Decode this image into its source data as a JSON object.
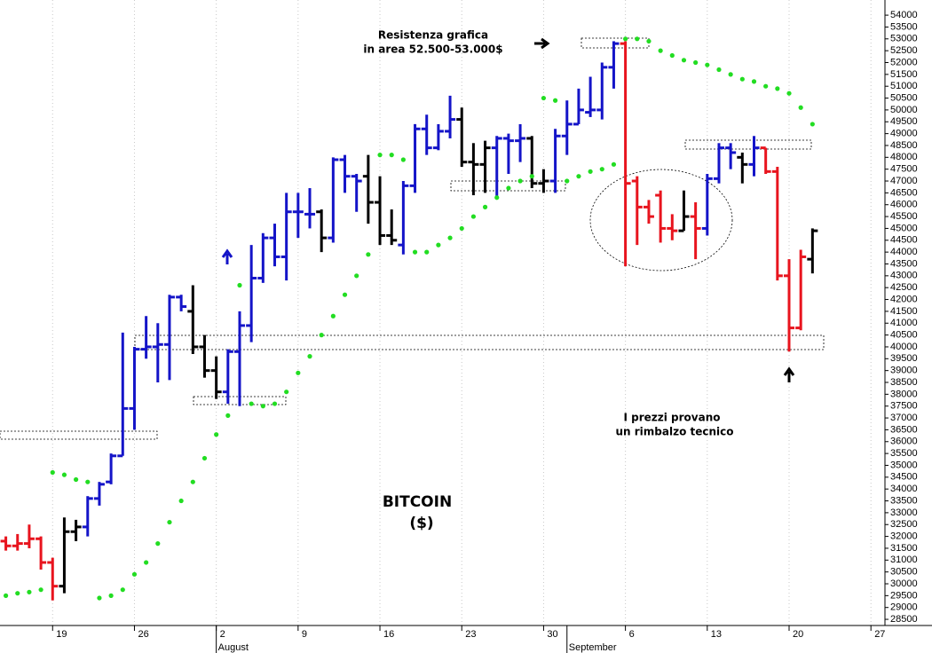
{
  "chart_data": {
    "type": "ohlc",
    "title": "BITCOIN",
    "subtitle": "($)",
    "annotations": [
      "Resistenza grafica",
      "in area 52.500-53.000$",
      "I prezzi provano",
      "un rimbalzo tecnico"
    ],
    "xlim": [
      -0.5,
      75.2
    ],
    "xticks": [
      {
        "value": 4,
        "label": "19"
      },
      {
        "value": 11,
        "label": "26"
      },
      {
        "value": 18,
        "label": "2"
      },
      {
        "value": 25,
        "label": "9"
      },
      {
        "value": 32,
        "label": "16"
      },
      {
        "value": 39,
        "label": "23"
      },
      {
        "value": 46,
        "label": "30"
      },
      {
        "value": 53,
        "label": "6"
      },
      {
        "value": 60,
        "label": "13"
      },
      {
        "value": 67,
        "label": "20"
      },
      {
        "value": 74,
        "label": "27"
      }
    ],
    "months": [
      {
        "value": 18,
        "label": "August"
      },
      {
        "value": 48,
        "label": "September"
      }
    ],
    "ylim": [
      28240,
      54640
    ],
    "yticks": [
      28500,
      29000,
      29500,
      30000,
      30500,
      31000,
      31500,
      32000,
      32500,
      33000,
      33500,
      34000,
      34500,
      35000,
      35500,
      36000,
      36500,
      37000,
      37500,
      38000,
      38500,
      39000,
      39500,
      40000,
      40500,
      41000,
      41500,
      42000,
      42500,
      43000,
      43500,
      44000,
      44500,
      45000,
      45500,
      46000,
      46500,
      47000,
      47500,
      48000,
      48500,
      49000,
      49500,
      50000,
      50500,
      51000,
      51500,
      52000,
      52500,
      53000,
      53500,
      54000
    ],
    "grid": true,
    "series": [
      {
        "color": "#e8141e",
        "x": [
          0,
          1,
          2,
          3,
          4,
          53,
          54,
          55,
          56,
          57,
          59,
          65,
          66,
          67,
          68
        ],
        "open": [
          31800,
          31600,
          31700,
          31900,
          30900,
          52800,
          47000,
          45900,
          46400,
          45000,
          45500,
          48400,
          47400,
          43000,
          40800
        ],
        "high": [
          32000,
          32100,
          32500,
          32000,
          31100,
          52900,
          47200,
          46200,
          46600,
          45600,
          46100,
          48400,
          47600,
          43700,
          44100
        ],
        "low": [
          31400,
          31400,
          31500,
          30600,
          29300,
          43400,
          44300,
          45200,
          44400,
          44500,
          43700,
          47300,
          42800,
          39800,
          40700
        ],
        "close": [
          31600,
          31700,
          31900,
          30900,
          29900,
          46900,
          45900,
          45500,
          45000,
          44900,
          45000,
          47400,
          43000,
          40800,
          43800
        ]
      },
      {
        "color": "#000000",
        "x": [
          5,
          6,
          16,
          17,
          18,
          27,
          31,
          32,
          33,
          39,
          40,
          41,
          45,
          46,
          58,
          63,
          69
        ],
        "open": [
          29900,
          32200,
          41500,
          40000,
          39000,
          45700,
          47200,
          46100,
          44700,
          49600,
          47800,
          47700,
          48800,
          46900,
          44900,
          48000,
          43700
        ],
        "high": [
          32800,
          32700,
          42600,
          40500,
          39600,
          45800,
          48100,
          47200,
          45800,
          50100,
          48600,
          48700,
          48900,
          47500,
          46600,
          48200,
          45000
        ],
        "low": [
          29600,
          31800,
          39700,
          38700,
          37800,
          44000,
          45200,
          44300,
          44300,
          47600,
          46400,
          46500,
          46700,
          46500,
          44900,
          46900,
          43100
        ],
        "close": [
          32200,
          32400,
          40000,
          39000,
          38100,
          44600,
          46100,
          44700,
          44500,
          47800,
          47700,
          48400,
          46900,
          47000,
          45500,
          47700,
          44900
        ]
      },
      {
        "color": "#1414c8",
        "x": [
          7,
          8,
          9,
          10,
          11,
          12,
          13,
          14,
          15,
          19,
          20,
          21,
          22,
          23,
          24,
          25,
          26,
          28,
          29,
          30,
          34,
          35,
          36,
          37,
          38,
          42,
          43,
          44,
          47,
          48,
          49,
          50,
          51,
          52,
          60,
          61,
          62,
          64
        ],
        "open": [
          32400,
          33600,
          34300,
          35400,
          37400,
          39900,
          40000,
          40100,
          42100,
          38100,
          39800,
          40900,
          42900,
          44600,
          43800,
          45700,
          45600,
          44600,
          47900,
          47200,
          44300,
          46800,
          49200,
          48400,
          49100,
          48400,
          48800,
          48700,
          47000,
          48900,
          49400,
          49900,
          50000,
          51800,
          45000,
          47100,
          48400,
          47700
        ],
        "high": [
          33700,
          34300,
          35500,
          40600,
          40000,
          41300,
          41000,
          42200,
          42200,
          39900,
          41500,
          44300,
          44800,
          45200,
          46500,
          46500,
          46700,
          48000,
          48100,
          47300,
          47000,
          49400,
          49800,
          49400,
          50600,
          48900,
          49000,
          49400,
          49200,
          50400,
          50900,
          51400,
          52000,
          52900,
          47300,
          48600,
          48600,
          48900
        ],
        "low": [
          32000,
          33300,
          34200,
          35400,
          36500,
          39500,
          38500,
          38600,
          41500,
          37600,
          37500,
          40200,
          42700,
          43400,
          42800,
          44600,
          45000,
          44400,
          46500,
          45700,
          43900,
          46500,
          48100,
          48300,
          48800,
          46300,
          47300,
          47800,
          46500,
          48100,
          49400,
          49700,
          49600,
          50900,
          44700,
          46900,
          47500,
          47200
        ],
        "close": [
          33600,
          34200,
          35400,
          37400,
          39900,
          40000,
          40100,
          42100,
          41700,
          39800,
          40900,
          42900,
          44600,
          43800,
          45700,
          45700,
          45600,
          47900,
          47200,
          47000,
          46800,
          49200,
          48400,
          49100,
          49600,
          48800,
          48700,
          48800,
          48900,
          49400,
          50000,
          50000,
          51800,
          52800,
          47100,
          48400,
          48200,
          48400
        ]
      }
    ],
    "sar": {
      "color": "#22dd22",
      "x": [
        0,
        1,
        2,
        3,
        4,
        5,
        6,
        7,
        8,
        9,
        10,
        11,
        12,
        13,
        14,
        15,
        16,
        17,
        18,
        19,
        20,
        21,
        22,
        23,
        24,
        25,
        26,
        27,
        28,
        29,
        30,
        31,
        32,
        33,
        34,
        35,
        36,
        37,
        38,
        39,
        40,
        41,
        42,
        43,
        44,
        45,
        46,
        47,
        48,
        49,
        50,
        51,
        52,
        53,
        54,
        55,
        56,
        57,
        58,
        59,
        60,
        61,
        62,
        63,
        64,
        65,
        66,
        67,
        68,
        69
      ],
      "values": [
        29500,
        29600,
        29650,
        29750,
        34700,
        34600,
        34400,
        34300,
        29400,
        29500,
        29750,
        30400,
        30900,
        31700,
        32600,
        33500,
        34300,
        35300,
        36300,
        37100,
        42600,
        37600,
        37500,
        37600,
        38100,
        38900,
        39600,
        40500,
        41300,
        42200,
        43000,
        43900,
        48100,
        48100,
        47900,
        44000,
        44000,
        44300,
        44600,
        45000,
        45500,
        45900,
        46300,
        46700,
        47000,
        47200,
        50500,
        50400,
        47000,
        47200,
        47400,
        47500,
        47700,
        53000,
        53000,
        52900,
        52500,
        52300,
        52100,
        52000,
        51900,
        51700,
        51500,
        51300,
        51200,
        51000,
        50900,
        50700,
        50100,
        49400
      ]
    }
  }
}
